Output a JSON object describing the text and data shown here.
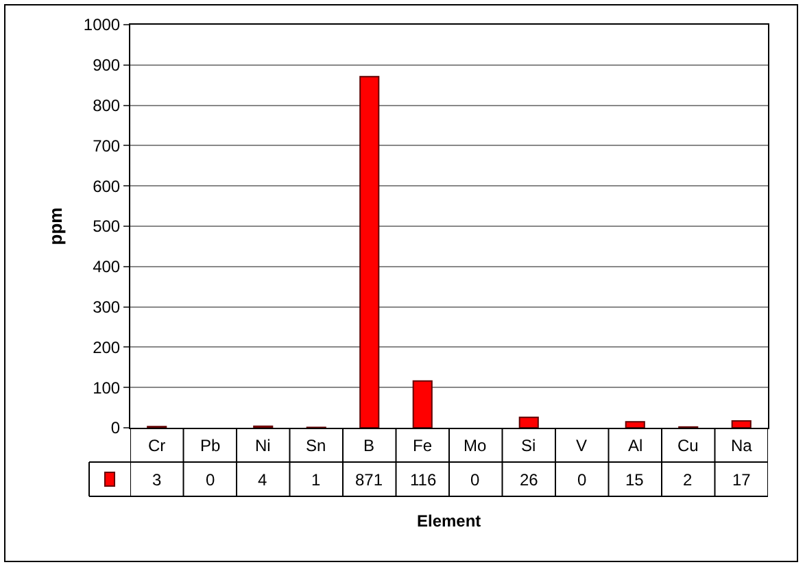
{
  "chart_data": {
    "type": "bar",
    "xlabel": "Element",
    "ylabel": "ppm",
    "categories": [
      "Cr",
      "Pb",
      "Ni",
      "Sn",
      "B",
      "Fe",
      "Mo",
      "Si",
      "V",
      "Al",
      "Cu",
      "Na"
    ],
    "values": [
      3,
      0,
      4,
      1,
      871,
      116,
      0,
      26,
      0,
      15,
      2,
      17
    ],
    "color": "#ff0000",
    "ylim": [
      0,
      1000
    ],
    "yticks": [
      0,
      100,
      200,
      300,
      400,
      500,
      600,
      700,
      800,
      900,
      1000
    ],
    "grid": "y",
    "data_labels": true,
    "legend": false
  }
}
